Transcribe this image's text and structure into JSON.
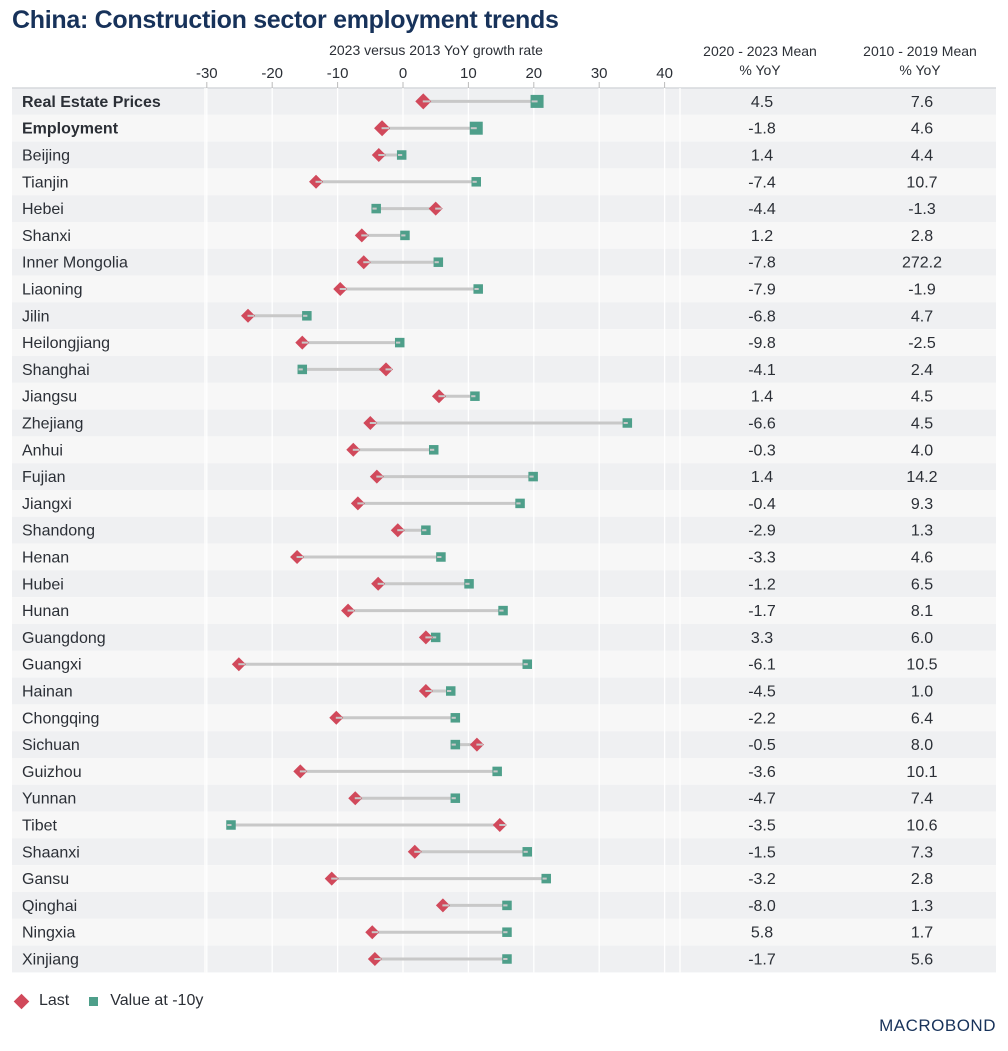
{
  "title": "China: Construction sector employment trends",
  "logo": "MACROBOND",
  "colors": {
    "title": "#17325a",
    "last": "#d1495b",
    "prev": "#4e9f8a",
    "connector": "#c8c8c8",
    "row_a": "#eff0f2",
    "row_b": "#f7f7f7",
    "grid": "#ffffff"
  },
  "legend": {
    "last_label": "Last",
    "prev_label": "Value at -10y"
  },
  "columns": {
    "col1_line1": "2020 - 2023 Mean",
    "col1_line2": "% YoY",
    "col2_line1": "2010 - 2019 Mean",
    "col2_line2": "% YoY"
  },
  "chart_data": {
    "type": "dumbbell",
    "title": "China: Construction sector employment trends",
    "xlabel": "2023 versus 2013 YoY growth rate",
    "xlim": [
      -35,
      40
    ],
    "xticks": [
      -30,
      -20,
      -10,
      0,
      10,
      20,
      30,
      40
    ],
    "grid": true,
    "legend_position": "bottom-left",
    "series": [
      {
        "name": "Last",
        "marker": "diamond"
      },
      {
        "name": "Value at -10y",
        "marker": "square"
      }
    ],
    "rows": [
      {
        "label": "Real Estate Prices",
        "bold": true,
        "last": 3.1,
        "prev": 20.5,
        "mean_2020_2023": "4.5",
        "mean_2010_2019": "7.6"
      },
      {
        "label": "Employment",
        "bold": true,
        "last": -3.2,
        "prev": 11.2,
        "mean_2020_2023": "-1.8",
        "mean_2010_2019": "4.6"
      },
      {
        "label": "Beijing",
        "last": -3.7,
        "prev": -0.2,
        "mean_2020_2023": "1.4",
        "mean_2010_2019": "4.4"
      },
      {
        "label": "Tianjin",
        "last": -13.3,
        "prev": 11.2,
        "mean_2020_2023": "-7.4",
        "mean_2010_2019": "10.7"
      },
      {
        "label": "Hebei",
        "last": 5.0,
        "prev": -4.1,
        "mean_2020_2023": "-4.4",
        "mean_2010_2019": "-1.3"
      },
      {
        "label": "Shanxi",
        "last": -6.3,
        "prev": 0.3,
        "mean_2020_2023": "1.2",
        "mean_2010_2019": "2.8"
      },
      {
        "label": "Inner Mongolia",
        "last": -6.0,
        "prev": 5.4,
        "mean_2020_2023": "-7.8",
        "mean_2010_2019": "272.2"
      },
      {
        "label": "Liaoning",
        "last": -9.6,
        "prev": 11.5,
        "mean_2020_2023": "-7.9",
        "mean_2010_2019": "-1.9"
      },
      {
        "label": "Jilin",
        "last": -23.7,
        "prev": -14.7,
        "mean_2020_2023": "-6.8",
        "mean_2010_2019": "4.7"
      },
      {
        "label": "Heilongjiang",
        "last": -15.4,
        "prev": -0.5,
        "mean_2020_2023": "-9.8",
        "mean_2010_2019": "-2.5"
      },
      {
        "label": "Shanghai",
        "last": -2.6,
        "prev": -15.4,
        "mean_2020_2023": "-4.1",
        "mean_2010_2019": "2.4"
      },
      {
        "label": "Jiangsu",
        "last": 5.5,
        "prev": 11.0,
        "mean_2020_2023": "1.4",
        "mean_2010_2019": "4.5"
      },
      {
        "label": "Zhejiang",
        "last": -5.0,
        "prev": 34.3,
        "mean_2020_2023": "-6.6",
        "mean_2010_2019": "4.5"
      },
      {
        "label": "Anhui",
        "last": -7.6,
        "prev": 4.7,
        "mean_2020_2023": "-0.3",
        "mean_2010_2019": "4.0"
      },
      {
        "label": "Fujian",
        "last": -4.0,
        "prev": 19.9,
        "mean_2020_2023": "1.4",
        "mean_2010_2019": "14.2"
      },
      {
        "label": "Jiangxi",
        "last": -6.9,
        "prev": 17.9,
        "mean_2020_2023": "-0.4",
        "mean_2010_2019": "9.3"
      },
      {
        "label": "Shandong",
        "last": -0.8,
        "prev": 3.5,
        "mean_2020_2023": "-2.9",
        "mean_2010_2019": "1.3"
      },
      {
        "label": "Henan",
        "last": -16.2,
        "prev": 5.8,
        "mean_2020_2023": "-3.3",
        "mean_2010_2019": "4.6"
      },
      {
        "label": "Hubei",
        "last": -3.8,
        "prev": 10.1,
        "mean_2020_2023": "-1.2",
        "mean_2010_2019": "6.5"
      },
      {
        "label": "Hunan",
        "last": -8.4,
        "prev": 15.3,
        "mean_2020_2023": "-1.7",
        "mean_2010_2019": "8.1"
      },
      {
        "label": "Guangdong",
        "last": 3.5,
        "prev": 5.0,
        "mean_2020_2023": "3.3",
        "mean_2010_2019": "6.0"
      },
      {
        "label": "Guangxi",
        "last": -25.1,
        "prev": 19.0,
        "mean_2020_2023": "-6.1",
        "mean_2010_2019": "10.5"
      },
      {
        "label": "Hainan",
        "last": 3.5,
        "prev": 7.3,
        "mean_2020_2023": "-4.5",
        "mean_2010_2019": "1.0"
      },
      {
        "label": "Chongqing",
        "last": -10.2,
        "prev": 8.0,
        "mean_2020_2023": "-2.2",
        "mean_2010_2019": "6.4"
      },
      {
        "label": "Sichuan",
        "last": 11.3,
        "prev": 8.0,
        "mean_2020_2023": "-0.5",
        "mean_2010_2019": "8.0"
      },
      {
        "label": "Guizhou",
        "last": -15.7,
        "prev": 14.4,
        "mean_2020_2023": "-3.6",
        "mean_2010_2019": "10.1"
      },
      {
        "label": "Yunnan",
        "last": -7.3,
        "prev": 8.0,
        "mean_2020_2023": "-4.7",
        "mean_2010_2019": "7.4"
      },
      {
        "label": "Tibet",
        "last": 14.8,
        "prev": -26.3,
        "mean_2020_2023": "-3.5",
        "mean_2010_2019": "10.6"
      },
      {
        "label": "Shaanxi",
        "last": 1.8,
        "prev": 19.0,
        "mean_2020_2023": "-1.5",
        "mean_2010_2019": "7.3"
      },
      {
        "label": "Gansu",
        "last": -10.9,
        "prev": 21.9,
        "mean_2020_2023": "-3.2",
        "mean_2010_2019": "2.8"
      },
      {
        "label": "Qinghai",
        "last": 6.1,
        "prev": 15.9,
        "mean_2020_2023": "-8.0",
        "mean_2010_2019": "1.3"
      },
      {
        "label": "Ningxia",
        "last": -4.7,
        "prev": 15.9,
        "mean_2020_2023": "5.8",
        "mean_2010_2019": "1.7"
      },
      {
        "label": "Xinjiang",
        "last": -4.3,
        "prev": 15.9,
        "mean_2020_2023": "-1.7",
        "mean_2010_2019": "5.6"
      }
    ]
  }
}
